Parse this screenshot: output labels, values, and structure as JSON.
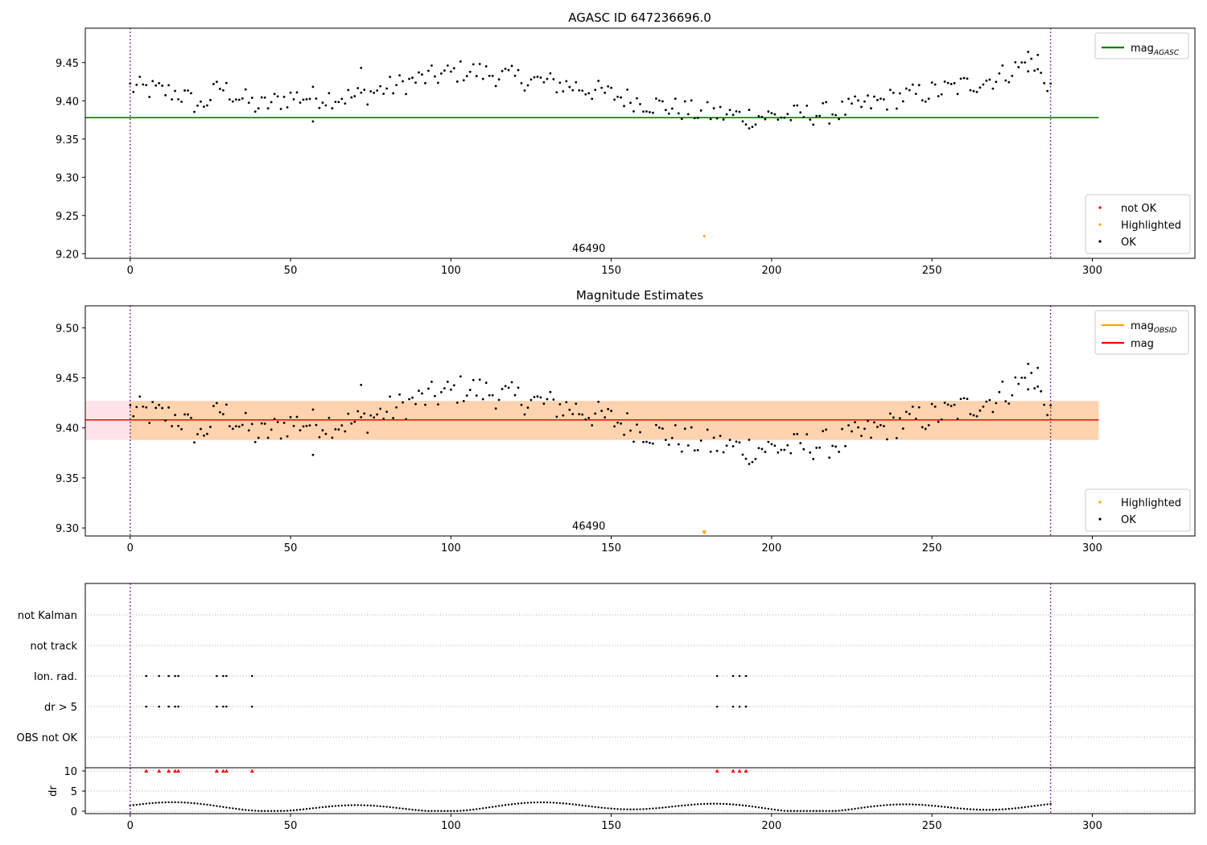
{
  "chart_data": [
    {
      "type": "scatter",
      "title": "AGASC ID 647236696.0",
      "xlim": [
        -14,
        332
      ],
      "ylim": [
        9.194,
        9.495
      ],
      "xticks": [
        0,
        50,
        100,
        150,
        200,
        250,
        300
      ],
      "yticks": [
        9.2,
        9.25,
        9.3,
        9.35,
        9.4,
        9.45
      ],
      "ytick_decimals": 2,
      "grid": false,
      "obsid_label": "46490",
      "obsid_label_x": 143,
      "vlines": [
        0,
        287
      ],
      "hlines": [
        {
          "name": "mag_AGASC",
          "y": 9.378,
          "color": "#008000",
          "x_end": 302
        }
      ],
      "series": [
        {
          "name": "not OK",
          "color": "#ff0000",
          "points": []
        },
        {
          "name": "Highlighted",
          "color": "#ffa500",
          "points": [
            [
              179,
              9.223
            ]
          ]
        },
        {
          "name": "OK",
          "color": "#000000",
          "series_ref": "main"
        }
      ],
      "legend": {
        "location": "upper-right",
        "entries": [
          {
            "label": "mag",
            "sub": "AGASC",
            "color": "#008000"
          }
        ]
      },
      "legend2": {
        "location": "lower-right",
        "entries": [
          {
            "label": "not OK",
            "color": "#ff0000"
          },
          {
            "label": "Highlighted",
            "color": "#ffa500"
          },
          {
            "label": "OK",
            "color": "#000000"
          }
        ]
      }
    },
    {
      "type": "scatter",
      "title": "Magnitude Estimates",
      "xlim": [
        -14,
        332
      ],
      "ylim": [
        9.292,
        9.522
      ],
      "xticks": [
        0,
        50,
        100,
        150,
        200,
        250,
        300
      ],
      "yticks": [
        9.3,
        9.35,
        9.4,
        9.45,
        9.5
      ],
      "ytick_decimals": 2,
      "grid": false,
      "obsid_label": "46490",
      "obsid_label_x": 143,
      "vlines": [
        0,
        287
      ],
      "band": {
        "y_low": 9.388,
        "y_high": 9.427,
        "x_start": -14,
        "x_end": 302
      },
      "hlines": [
        {
          "name": "mag",
          "y": 9.408,
          "color": "#ff0000",
          "x_end": 302
        }
      ],
      "series": [
        {
          "name": "Highlighted",
          "color": "#ffa500",
          "points": [
            [
              179,
              9.295
            ]
          ],
          "marker": "down-triangle"
        },
        {
          "name": "OK",
          "color": "#000000",
          "series_ref": "main"
        }
      ],
      "legend": {
        "location": "upper-right",
        "entries": [
          {
            "label": "mag",
            "sub": "OBSID",
            "color": "#ffa500"
          },
          {
            "label": "mag",
            "sub": "",
            "color": "#ff0000"
          }
        ]
      },
      "legend2": {
        "location": "lower-right",
        "entries": [
          {
            "label": "Highlighted",
            "color": "#ffa500"
          },
          {
            "label": "OK",
            "color": "#000000"
          }
        ]
      }
    },
    {
      "type": "scatter",
      "title": "",
      "xlim": [
        -14,
        332
      ],
      "xticks": [
        0,
        50,
        100,
        150,
        200,
        250,
        300
      ],
      "vlines": [
        0,
        287
      ],
      "flag_rows": [
        "not Kalman",
        "not track",
        "Ion. rad.",
        "dr > 5",
        "OBS not OK"
      ],
      "flag_points": {
        "Ion. rad.": [
          5,
          9,
          12,
          14,
          15,
          27,
          29,
          30,
          38,
          183,
          188,
          190,
          192
        ],
        "dr > 5": [
          5,
          9,
          12,
          14,
          15,
          27,
          29,
          30,
          38,
          183,
          188,
          190,
          192
        ]
      },
      "dr_ylabel": "dr",
      "dr_ylim": [
        -0.6,
        10.8
      ],
      "dr_yticks": [
        0,
        5,
        10
      ],
      "dr_overflow_points": [
        5,
        9,
        12,
        14,
        15,
        27,
        29,
        30,
        38,
        183,
        188,
        190,
        192
      ]
    }
  ]
}
